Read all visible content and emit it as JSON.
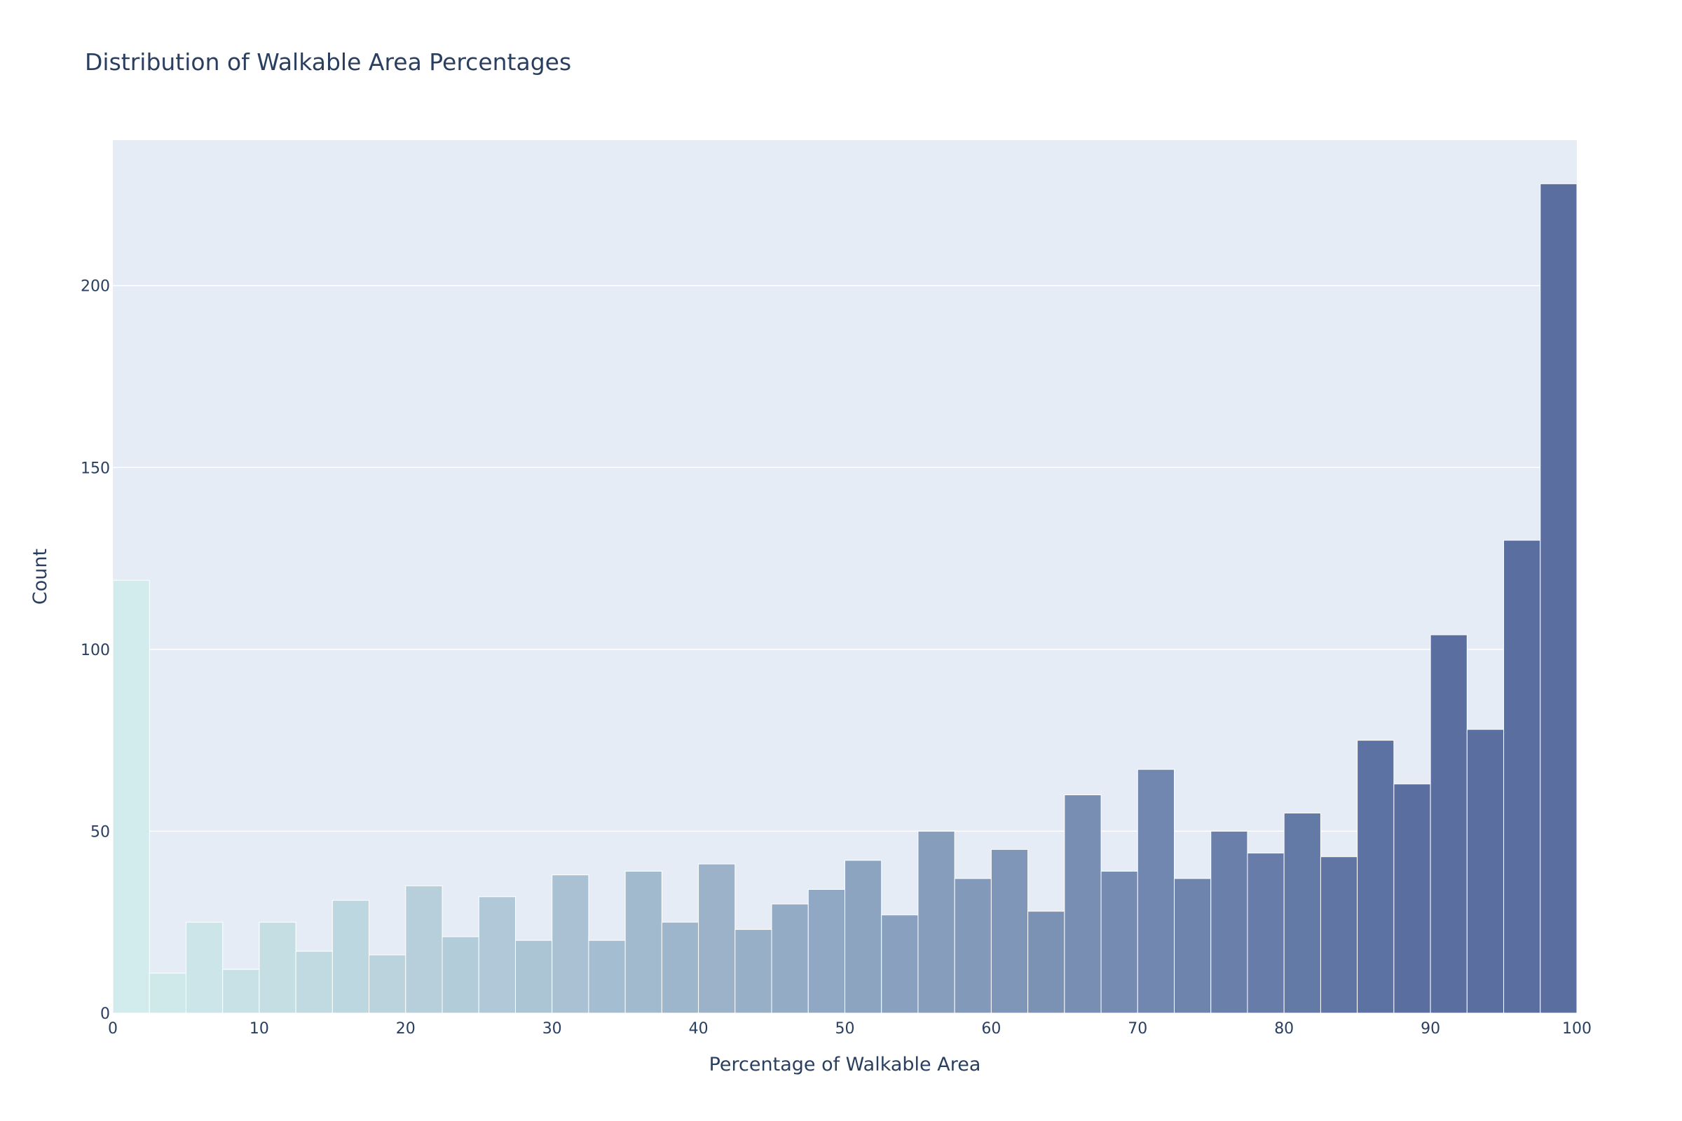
{
  "chart_data": {
    "type": "bar",
    "subtype": "histogram",
    "title": "Distribution of Walkable Area Percentages",
    "xlabel": "Percentage of Walkable Area",
    "ylabel": "Count",
    "xlim": [
      0,
      100
    ],
    "ylim": [
      0,
      240
    ],
    "bin_width": 2.5,
    "bin_starts": [
      0,
      2.5,
      5,
      7.5,
      10,
      12.5,
      15,
      17.5,
      20,
      22.5,
      25,
      27.5,
      30,
      32.5,
      35,
      37.5,
      40,
      42.5,
      45,
      47.5,
      50,
      52.5,
      55,
      57.5,
      60,
      62.5,
      65,
      67.5,
      70,
      72.5,
      75,
      77.5,
      80,
      82.5,
      85,
      87.5,
      90,
      92.5,
      95,
      97.5
    ],
    "values": [
      119,
      11,
      25,
      12,
      25,
      17,
      31,
      16,
      35,
      21,
      32,
      20,
      38,
      20,
      39,
      25,
      41,
      23,
      30,
      34,
      42,
      27,
      50,
      37,
      45,
      28,
      60,
      39,
      67,
      37,
      50,
      44,
      55,
      43,
      75,
      63,
      104,
      78,
      130,
      228
    ],
    "x_ticks": [
      0,
      10,
      20,
      30,
      40,
      50,
      60,
      70,
      80,
      90,
      100
    ],
    "x_tick_labels": [
      "0",
      "10",
      "20",
      "30",
      "40",
      "50",
      "60",
      "70",
      "80",
      "90",
      "100"
    ],
    "y_ticks": [
      0,
      50,
      100,
      150,
      200
    ],
    "y_tick_labels": [
      "0",
      "50",
      "100",
      "150",
      "200"
    ],
    "grid": true,
    "legend": "none",
    "colorscale": [
      "#d4eeee",
      "#5a6fa0"
    ],
    "background_color": "#e5ecf6",
    "gridline_color": "#ffffff",
    "text_color": "#2a3f5f"
  }
}
